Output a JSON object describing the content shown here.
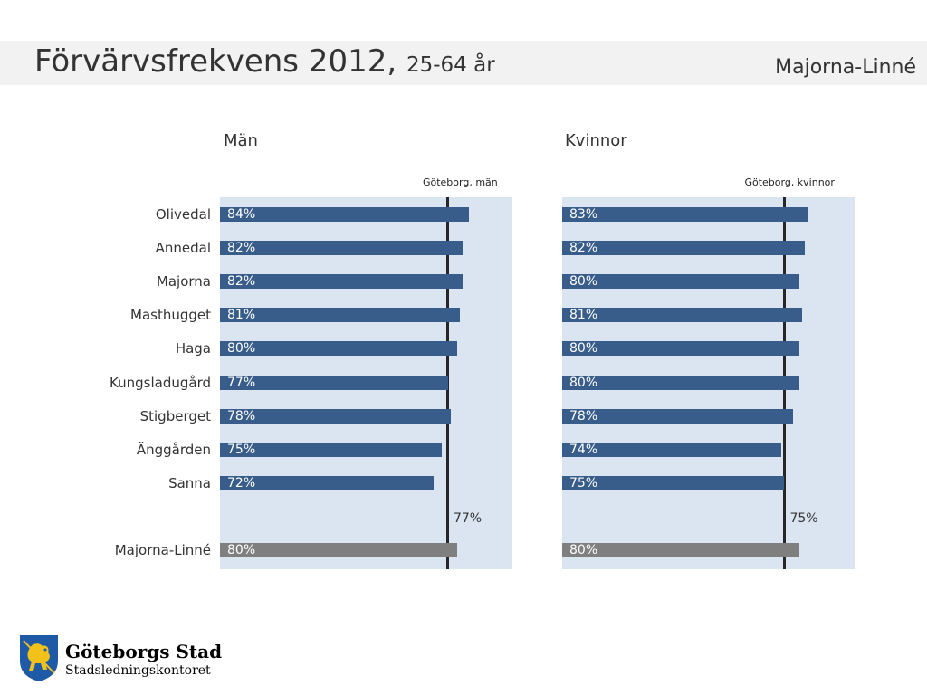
{
  "header": {
    "title": "Förvärvsfrekvens 2012,",
    "subtitle": "25-64 år",
    "region": "Majorna-Linné"
  },
  "footer": {
    "org_name": "Göteborgs Stad",
    "dept_name": "Stadsledningskontoret"
  },
  "chart_data": [
    {
      "type": "bar",
      "orientation": "horizontal",
      "title": "Män",
      "categories": [
        "Olivedal",
        "Annedal",
        "Majorna",
        "Masthugget",
        "Haga",
        "Kungsladugård",
        "Stigberget",
        "Änggården",
        "Sanna",
        "Majorna-Linné"
      ],
      "values": [
        84,
        82,
        82,
        81,
        80,
        77,
        78,
        75,
        72,
        80
      ],
      "value_labels": [
        "84%",
        "82%",
        "82%",
        "81%",
        "80%",
        "77%",
        "78%",
        "75%",
        "72%",
        "80%"
      ],
      "reference": {
        "label": "Göteborg, män",
        "value": 77,
        "value_label": "77%"
      },
      "colors": {
        "bar": "#385d8a",
        "total_bar": "#7f7f7f",
        "background": "#dbe5f1",
        "reference_line": "#262626"
      }
    },
    {
      "type": "bar",
      "orientation": "horizontal",
      "title": "Kvinnor",
      "categories": [
        "Olivedal",
        "Annedal",
        "Majorna",
        "Masthugget",
        "Haga",
        "Kungsladugård",
        "Stigberget",
        "Änggården",
        "Sanna",
        "Majorna-Linné"
      ],
      "values": [
        83,
        82,
        80,
        81,
        80,
        80,
        78,
        74,
        75,
        80
      ],
      "value_labels": [
        "83%",
        "82%",
        "80%",
        "81%",
        "80%",
        "80%",
        "78%",
        "74%",
        "75%",
        "80%"
      ],
      "reference": {
        "label": "Göteborg, kvinnor",
        "value": 75,
        "value_label": "75%"
      },
      "colors": {
        "bar": "#385d8a",
        "total_bar": "#7f7f7f",
        "background": "#dbe5f1",
        "reference_line": "#262626"
      }
    }
  ]
}
